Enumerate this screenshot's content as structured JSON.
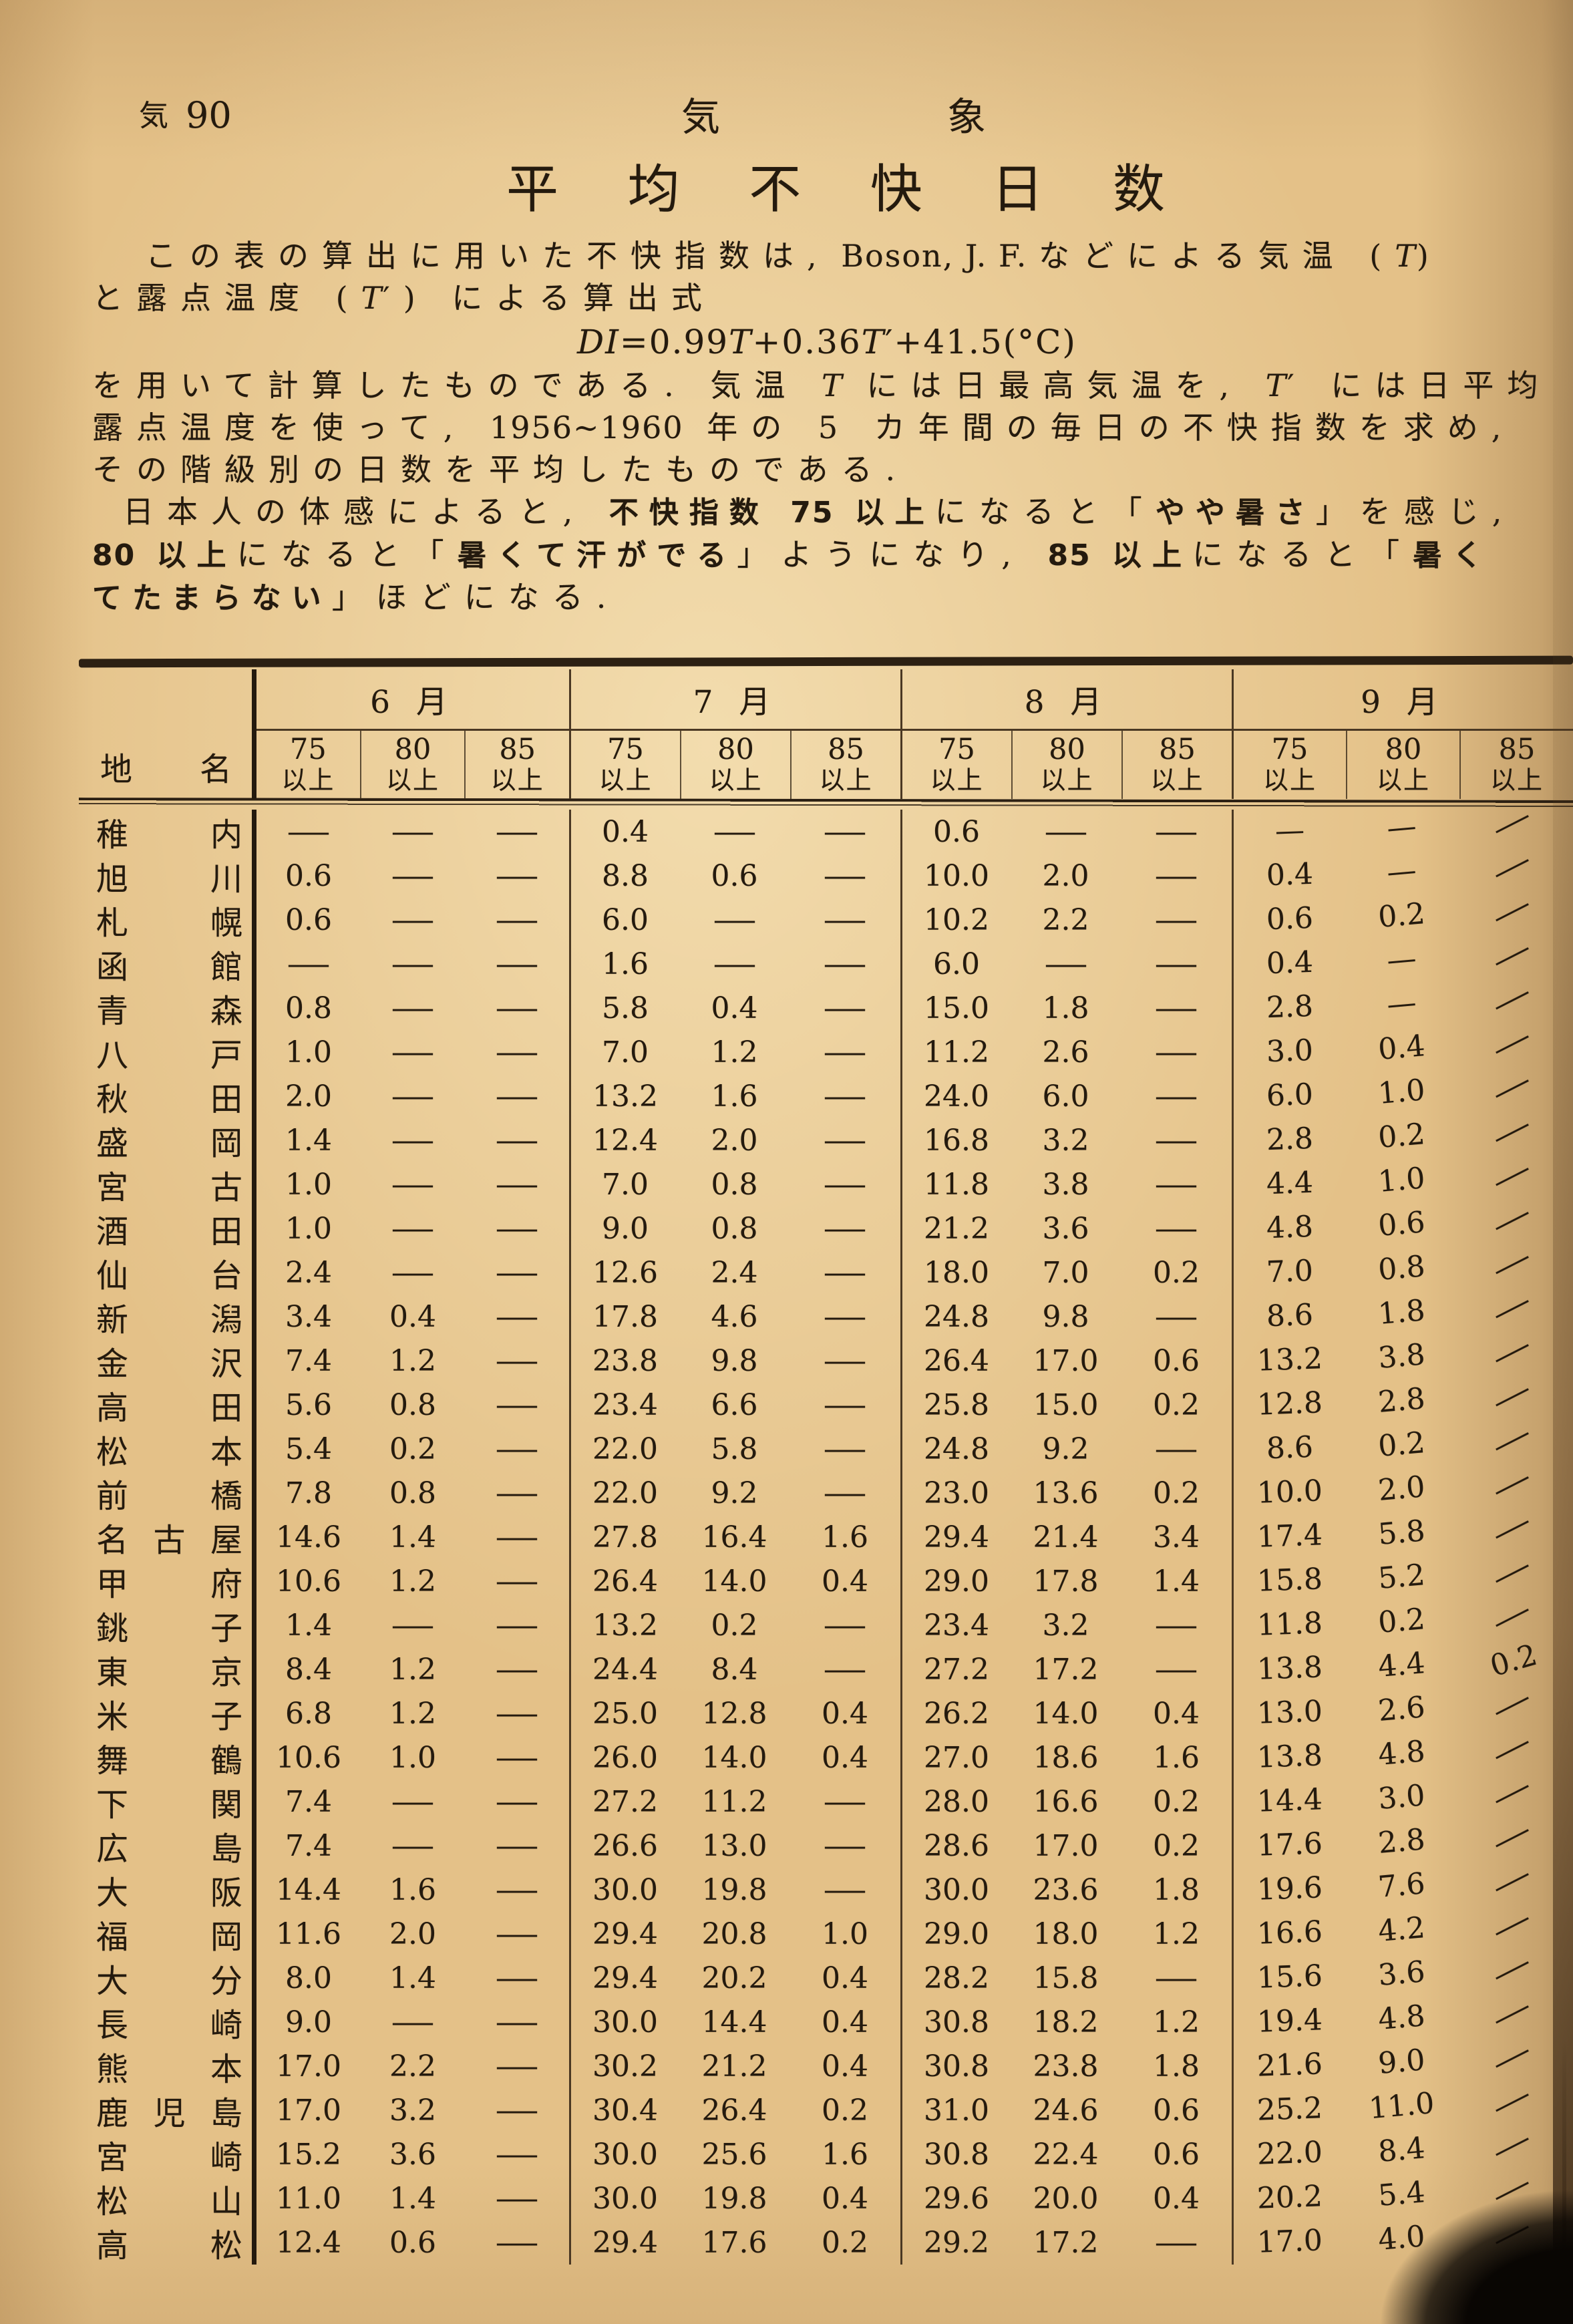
{
  "page_header": {
    "page_label_kanji": "気",
    "page_label_number": "90",
    "section_char_1": "気",
    "section_char_2": "象"
  },
  "title_chars": [
    "平",
    "均",
    "不",
    "快",
    "日",
    "数"
  ],
  "intro_lines": [
    {
      "ind": 80,
      "seg": [
        {
          "t": "この表の算出に用いた不快指数は,",
          "s": "n"
        },
        {
          "t": "  Boson, J. F.  ",
          "s": "l"
        },
        {
          "t": "などによる気温 (",
          "s": "n"
        },
        {
          "t": "T",
          "s": "i"
        },
        {
          "t": ")",
          "s": "l"
        }
      ]
    },
    {
      "seg": [
        {
          "t": "と露点温度 (",
          "s": "n"
        },
        {
          "t": "T",
          "s": "i"
        },
        {
          "t": "′) による算出式",
          "s": "n"
        }
      ]
    },
    {
      "c": true,
      "seg": [
        {
          "t": "DI",
          "s": "i"
        },
        {
          "t": "=0.99",
          "s": "l"
        },
        {
          "t": "T",
          "s": "i"
        },
        {
          "t": "+0.36",
          "s": "l"
        },
        {
          "t": "T",
          "s": "i"
        },
        {
          "t": "′+41.5(°C)",
          "s": "l"
        }
      ]
    },
    {
      "seg": [
        {
          "t": "を用いて計算したものである. 気温 ",
          "s": "n"
        },
        {
          "t": "T",
          "s": "i"
        },
        {
          "t": " には日最高気温を, ",
          "s": "n"
        },
        {
          "t": "T",
          "s": "i"
        },
        {
          "t": "′ には日平均",
          "s": "n"
        }
      ]
    },
    {
      "seg": [
        {
          "t": "露点温度を使って, ",
          "s": "n"
        },
        {
          "t": "1956~1960",
          "s": "l"
        },
        {
          "t": " 年の 5 カ年間の毎日の不快指数を求め,",
          "s": "n"
        }
      ]
    },
    {
      "seg": [
        {
          "t": "その階級別の日数を平均したものである.",
          "s": "n"
        }
      ]
    },
    {
      "ind": 46,
      "seg": [
        {
          "t": "日本人の体感によると, ",
          "s": "n"
        },
        {
          "t": "不快指数 ",
          "s": "b"
        },
        {
          "t": "75",
          "s": "bl"
        },
        {
          "t": " 以上",
          "s": "b"
        },
        {
          "t": "になると「",
          "s": "n"
        },
        {
          "t": "やや暑さ",
          "s": "b"
        },
        {
          "t": "」を感じ,",
          "s": "n"
        }
      ]
    },
    {
      "seg": [
        {
          "t": "80",
          "s": "bl"
        },
        {
          "t": " 以上",
          "s": "b"
        },
        {
          "t": "になると「",
          "s": "n"
        },
        {
          "t": "暑くて汗がでる",
          "s": "b"
        },
        {
          "t": "」ようになり, ",
          "s": "n"
        },
        {
          "t": "85",
          "s": "bl"
        },
        {
          "t": " 以上",
          "s": "b"
        },
        {
          "t": "になると「",
          "s": "n"
        },
        {
          "t": "暑く",
          "s": "b"
        }
      ]
    },
    {
      "seg": [
        {
          "t": "てたまらない",
          "s": "b"
        },
        {
          "t": "」ほどになる.",
          "s": "n"
        }
      ]
    }
  ],
  "table": {
    "name_header": [
      "地",
      "名"
    ],
    "sub_suffix": "以上",
    "month_groups": [
      {
        "label": "6 月",
        "sub": [
          "75",
          "80",
          "85"
        ]
      },
      {
        "label": "7 月",
        "sub": [
          "75",
          "80",
          "85"
        ]
      },
      {
        "label": "8 月",
        "sub": [
          "75",
          "80",
          "85"
        ]
      },
      {
        "label": "9 月",
        "sub": [
          "75",
          "80",
          "85"
        ]
      }
    ],
    "rows": [
      {
        "name": "稚内",
        "v": [
          "—",
          "—",
          "—",
          "0.4",
          "—",
          "—",
          "0.6",
          "—",
          "—",
          "—",
          "—",
          "—"
        ]
      },
      {
        "name": "旭川",
        "v": [
          "0.6",
          "—",
          "—",
          "8.8",
          "0.6",
          "—",
          "10.0",
          "2.0",
          "—",
          "0.4",
          "—",
          "—"
        ]
      },
      {
        "name": "札幌",
        "v": [
          "0.6",
          "—",
          "—",
          "6.0",
          "—",
          "—",
          "10.2",
          "2.2",
          "—",
          "0.6",
          "0.2",
          "—"
        ]
      },
      {
        "name": "函館",
        "v": [
          "—",
          "—",
          "—",
          "1.6",
          "—",
          "—",
          "6.0",
          "—",
          "—",
          "0.4",
          "—",
          "—"
        ]
      },
      {
        "name": "青森",
        "v": [
          "0.8",
          "—",
          "—",
          "5.8",
          "0.4",
          "—",
          "15.0",
          "1.8",
          "—",
          "2.8",
          "—",
          "—"
        ]
      },
      {
        "name": "八戸",
        "v": [
          "1.0",
          "—",
          "—",
          "7.0",
          "1.2",
          "—",
          "11.2",
          "2.6",
          "—",
          "3.0",
          "0.4",
          "—"
        ]
      },
      {
        "name": "秋田",
        "v": [
          "2.0",
          "—",
          "—",
          "13.2",
          "1.6",
          "—",
          "24.0",
          "6.0",
          "—",
          "6.0",
          "1.0",
          "—"
        ]
      },
      {
        "name": "盛岡",
        "v": [
          "1.4",
          "—",
          "—",
          "12.4",
          "2.0",
          "—",
          "16.8",
          "3.2",
          "—",
          "2.8",
          "0.2",
          "—"
        ]
      },
      {
        "name": "宮古",
        "v": [
          "1.0",
          "—",
          "—",
          "7.0",
          "0.8",
          "—",
          "11.8",
          "3.8",
          "—",
          "4.4",
          "1.0",
          "—"
        ]
      },
      {
        "name": "酒田",
        "v": [
          "1.0",
          "—",
          "—",
          "9.0",
          "0.8",
          "—",
          "21.2",
          "3.6",
          "—",
          "4.8",
          "0.6",
          "—"
        ]
      },
      {
        "name": "仙台",
        "v": [
          "2.4",
          "—",
          "—",
          "12.6",
          "2.4",
          "—",
          "18.0",
          "7.0",
          "0.2",
          "7.0",
          "0.8",
          "—"
        ]
      },
      {
        "name": "新潟",
        "v": [
          "3.4",
          "0.4",
          "—",
          "17.8",
          "4.6",
          "—",
          "24.8",
          "9.8",
          "—",
          "8.6",
          "1.8",
          "—"
        ]
      },
      {
        "name": "金沢",
        "v": [
          "7.4",
          "1.2",
          "—",
          "23.8",
          "9.8",
          "—",
          "26.4",
          "17.0",
          "0.6",
          "13.2",
          "3.8",
          "—"
        ]
      },
      {
        "name": "高田",
        "v": [
          "5.6",
          "0.8",
          "—",
          "23.4",
          "6.6",
          "—",
          "25.8",
          "15.0",
          "0.2",
          "12.8",
          "2.8",
          "—"
        ]
      },
      {
        "name": "松本",
        "v": [
          "5.4",
          "0.2",
          "—",
          "22.0",
          "5.8",
          "—",
          "24.8",
          "9.2",
          "—",
          "8.6",
          "0.2",
          "—"
        ]
      },
      {
        "name": "前橋",
        "v": [
          "7.8",
          "0.8",
          "—",
          "22.0",
          "9.2",
          "—",
          "23.0",
          "13.6",
          "0.2",
          "10.0",
          "2.0",
          "—"
        ]
      },
      {
        "name": "名古屋",
        "v": [
          "14.6",
          "1.4",
          "—",
          "27.8",
          "16.4",
          "1.6",
          "29.4",
          "21.4",
          "3.4",
          "17.4",
          "5.8",
          "—"
        ]
      },
      {
        "name": "甲府",
        "v": [
          "10.6",
          "1.2",
          "—",
          "26.4",
          "14.0",
          "0.4",
          "29.0",
          "17.8",
          "1.4",
          "15.8",
          "5.2",
          "—"
        ]
      },
      {
        "name": "銚子",
        "v": [
          "1.4",
          "—",
          "—",
          "13.2",
          "0.2",
          "—",
          "23.4",
          "3.2",
          "—",
          "11.8",
          "0.2",
          "—"
        ]
      },
      {
        "name": "東京",
        "v": [
          "8.4",
          "1.2",
          "—",
          "24.4",
          "8.4",
          "—",
          "27.2",
          "17.2",
          "—",
          "13.8",
          "4.4",
          "0.2"
        ]
      },
      {
        "name": "米子",
        "v": [
          "6.8",
          "1.2",
          "—",
          "25.0",
          "12.8",
          "0.4",
          "26.2",
          "14.0",
          "0.4",
          "13.0",
          "2.6",
          "—"
        ]
      },
      {
        "name": "舞鶴",
        "v": [
          "10.6",
          "1.0",
          "—",
          "26.0",
          "14.0",
          "0.4",
          "27.0",
          "18.6",
          "1.6",
          "13.8",
          "4.8",
          "—"
        ]
      },
      {
        "name": "下関",
        "v": [
          "7.4",
          "—",
          "—",
          "27.2",
          "11.2",
          "—",
          "28.0",
          "16.6",
          "0.2",
          "14.4",
          "3.0",
          "—"
        ]
      },
      {
        "name": "広島",
        "v": [
          "7.4",
          "—",
          "—",
          "26.6",
          "13.0",
          "—",
          "28.6",
          "17.0",
          "0.2",
          "17.6",
          "2.8",
          "—"
        ]
      },
      {
        "name": "大阪",
        "v": [
          "14.4",
          "1.6",
          "—",
          "30.0",
          "19.8",
          "—",
          "30.0",
          "23.6",
          "1.8",
          "19.6",
          "7.6",
          "—"
        ]
      },
      {
        "name": "福岡",
        "v": [
          "11.6",
          "2.0",
          "—",
          "29.4",
          "20.8",
          "1.0",
          "29.0",
          "18.0",
          "1.2",
          "16.6",
          "4.2",
          "—"
        ]
      },
      {
        "name": "大分",
        "v": [
          "8.0",
          "1.4",
          "—",
          "29.4",
          "20.2",
          "0.4",
          "28.2",
          "15.8",
          "—",
          "15.6",
          "3.6",
          "—"
        ]
      },
      {
        "name": "長崎",
        "v": [
          "9.0",
          "—",
          "—",
          "30.0",
          "14.4",
          "0.4",
          "30.8",
          "18.2",
          "1.2",
          "19.4",
          "4.8",
          "—"
        ]
      },
      {
        "name": "熊本",
        "v": [
          "17.0",
          "2.2",
          "—",
          "30.2",
          "21.2",
          "0.4",
          "30.8",
          "23.8",
          "1.8",
          "21.6",
          "9.0",
          "—"
        ]
      },
      {
        "name": "鹿児島",
        "v": [
          "17.0",
          "3.2",
          "—",
          "30.4",
          "26.4",
          "0.2",
          "31.0",
          "24.6",
          "0.6",
          "25.2",
          "11.0",
          "—"
        ]
      },
      {
        "name": "宮崎",
        "v": [
          "15.2",
          "3.6",
          "—",
          "30.0",
          "25.6",
          "1.6",
          "30.8",
          "22.4",
          "0.6",
          "22.0",
          "8.4",
          "—"
        ]
      },
      {
        "name": "松山",
        "v": [
          "11.0",
          "1.4",
          "—",
          "30.0",
          "19.8",
          "0.4",
          "29.6",
          "20.0",
          "0.4",
          "20.2",
          "5.4",
          "—"
        ]
      },
      {
        "name": "高松",
        "v": [
          "12.4",
          "0.6",
          "—",
          "29.4",
          "17.6",
          "0.2",
          "29.2",
          "17.2",
          "—",
          "17.0",
          "4.0",
          "—"
        ]
      }
    ]
  }
}
